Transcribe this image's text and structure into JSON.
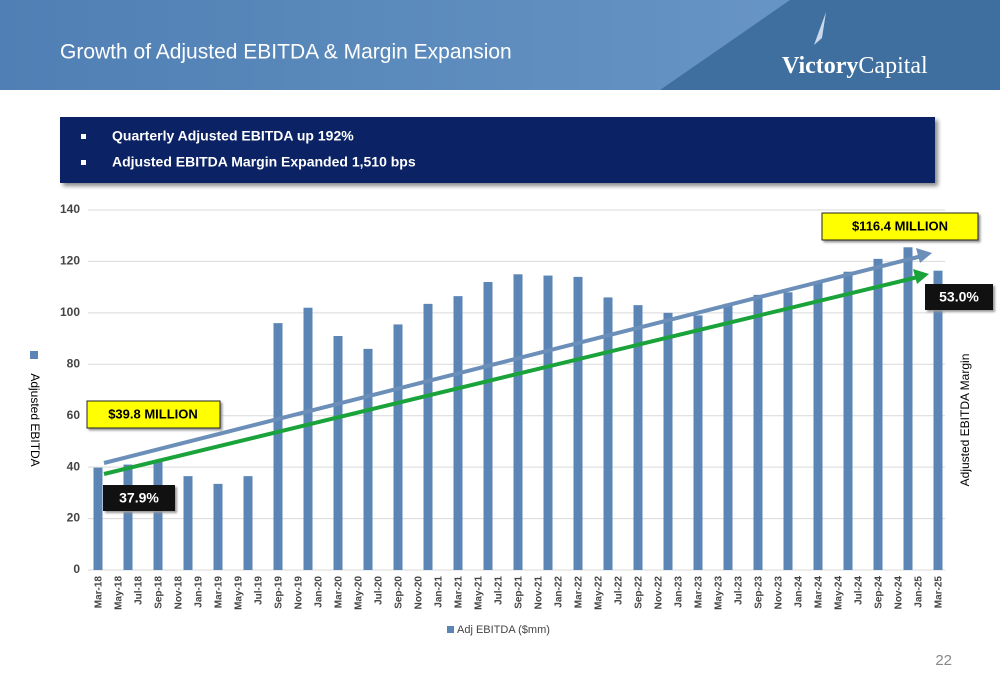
{
  "header": {
    "title": "Growth of Adjusted EBITDA & Margin Expansion",
    "logo": "Victory",
    "logo_suffix": "Capital"
  },
  "bullets": [
    "Quarterly Adjusted EBITDA up 192%",
    "Adjusted EBITDA Margin Expanded 1,510 bps"
  ],
  "chart_data": {
    "type": "bar",
    "categories": [
      "Mar-18",
      null,
      "May-18",
      null,
      "Jul-18",
      null,
      "Sep-18",
      null,
      "Nov-18",
      null,
      "Jan-19",
      null,
      "Mar-19",
      null,
      "May-19",
      null,
      "Jul-19",
      null,
      "Sep-19",
      null,
      "Nov-19",
      null,
      "Jan-20",
      null,
      "Mar-20",
      null,
      "May-20",
      null,
      "Jul-20",
      null,
      "Sep-20",
      null,
      "Nov-20",
      null,
      "Jan-21",
      null,
      "Mar-21",
      null,
      "May-21",
      null,
      "Jul-21",
      null,
      "Sep-21",
      null,
      "Nov-21",
      null,
      "Jan-22",
      null,
      "Mar-22",
      null,
      "May-22",
      null,
      "Jul-22",
      null,
      "Sep-22",
      null,
      "Nov-22",
      null,
      "Jan-23",
      null,
      "Mar-23",
      null,
      "May-23",
      null,
      "Jul-23",
      null,
      "Sep-23",
      null,
      "Nov-23",
      null,
      "Jan-24",
      null,
      "Mar-24",
      null,
      "May-24",
      null,
      "Jul-24",
      null,
      "Sep-24",
      null,
      "Nov-24",
      null,
      "Jan-25",
      null,
      "Mar-25"
    ],
    "series": [
      {
        "name": "Adj EBITDA ($mm)",
        "color": "#5b85b5",
        "values": [
          39.8,
          null,
          null,
          41,
          null,
          null,
          42,
          null,
          null,
          36.5,
          null,
          null,
          33.5,
          null,
          null,
          36.5,
          null,
          null,
          96,
          null,
          null,
          102,
          null,
          null,
          91,
          null,
          null,
          86,
          null,
          null,
          95.5,
          null,
          null,
          103.5,
          null,
          null,
          106.5,
          null,
          null,
          112,
          null,
          null,
          115,
          null,
          null,
          114.5,
          null,
          null,
          114,
          null,
          null,
          106,
          null,
          null,
          103,
          null,
          null,
          100,
          null,
          null,
          99,
          null,
          null,
          103.5,
          null,
          null,
          107,
          null,
          null,
          108,
          null,
          null,
          112,
          null,
          null,
          116,
          null,
          null,
          121,
          null,
          null,
          125.5,
          null,
          null,
          116.4
        ]
      }
    ],
    "ylim": [
      0,
      140
    ],
    "yticks": [
      0,
      20,
      40,
      60,
      80,
      100,
      120,
      140
    ],
    "grid": true,
    "ylabel": "Adjusted EBITDA",
    "y2label": "Adjusted EBITDA Margin",
    "annotations": [
      "$116.4 MILLION",
      "$39.8 MILLION",
      "37.9%",
      "53.0%"
    ]
  },
  "page_number": "22"
}
